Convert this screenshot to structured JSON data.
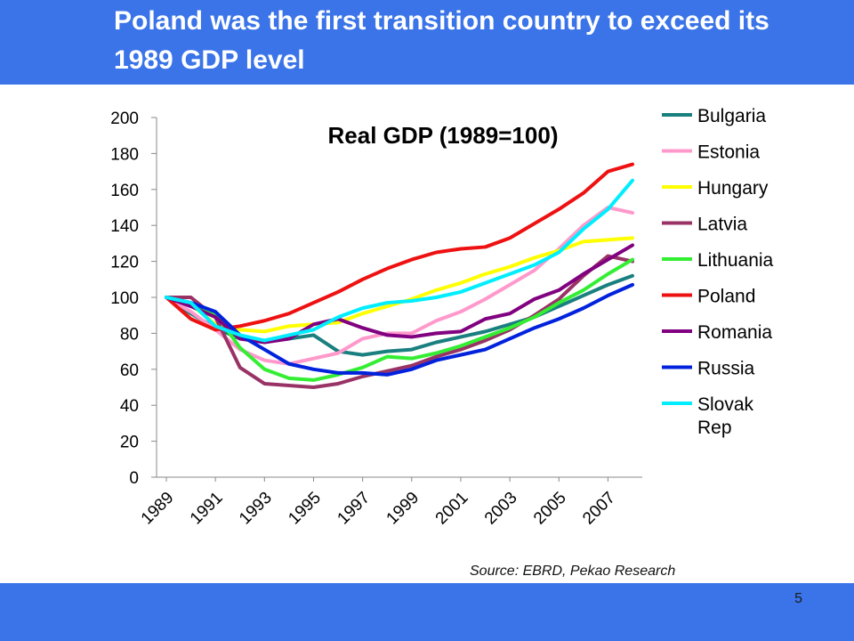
{
  "slide": {
    "title": "Poland was the first transition country to exceed its 1989 GDP level",
    "source": "Source: EBRD, Pekao Research",
    "page_number": "5",
    "colors": {
      "header_bar": "#3a74e8",
      "footer_bar": "#3a74e8"
    }
  },
  "chart_data": {
    "type": "line",
    "title": "Real GDP (1989=100)",
    "xlabel": "",
    "ylabel": "",
    "ylim": [
      0,
      200
    ],
    "yticks": [
      0,
      20,
      40,
      60,
      80,
      100,
      120,
      140,
      160,
      180,
      200
    ],
    "xlim": [
      1989,
      2008
    ],
    "xtick_labels": [
      "1989",
      "1991",
      "1993",
      "1995",
      "1997",
      "1999",
      "2001",
      "2003",
      "2005",
      "2007"
    ],
    "grid": false,
    "legend_position": "right",
    "x": [
      1989,
      1990,
      1991,
      1992,
      1993,
      1994,
      1995,
      1996,
      1997,
      1998,
      1999,
      2000,
      2001,
      2002,
      2003,
      2004,
      2005,
      2006,
      2007,
      2008
    ],
    "series": [
      {
        "name": "Bulgaria",
        "color": "#1a7f7f",
        "values": [
          100,
          91,
          83,
          77,
          76,
          77,
          79,
          70,
          68,
          70,
          71,
          75,
          78,
          81,
          85,
          89,
          95,
          101,
          107,
          112
        ]
      },
      {
        "name": "Estonia",
        "color": "#ff99cc",
        "values": [
          100,
          92,
          82,
          71,
          65,
          63,
          66,
          69,
          77,
          80,
          80,
          87,
          92,
          99,
          107,
          115,
          127,
          140,
          150,
          147
        ]
      },
      {
        "name": "Hungary",
        "color": "#ffff00",
        "values": [
          100,
          96,
          85,
          82,
          81,
          84,
          85,
          86,
          91,
          95,
          99,
          104,
          108,
          113,
          117,
          122,
          126,
          131,
          132,
          133
        ]
      },
      {
        "name": "Latvia",
        "color": "#993366",
        "values": [
          100,
          100,
          89,
          61,
          52,
          51,
          50,
          52,
          56,
          59,
          62,
          67,
          71,
          76,
          82,
          90,
          99,
          112,
          123,
          120
        ]
      },
      {
        "name": "Lithuania",
        "color": "#33ee33",
        "values": [
          100,
          96,
          91,
          72,
          60,
          55,
          54,
          57,
          61,
          67,
          66,
          69,
          73,
          78,
          83,
          89,
          97,
          104,
          113,
          121
        ]
      },
      {
        "name": "Poland",
        "color": "#ee1111",
        "values": [
          100,
          88,
          82,
          84,
          87,
          91,
          97,
          103,
          110,
          116,
          121,
          125,
          127,
          128,
          133,
          141,
          149,
          158,
          170,
          174
        ]
      },
      {
        "name": "Romania",
        "color": "#800080",
        "values": [
          100,
          95,
          89,
          77,
          75,
          77,
          85,
          88,
          83,
          79,
          78,
          80,
          81,
          88,
          91,
          99,
          104,
          113,
          121,
          129
        ]
      },
      {
        "name": "Russia",
        "color": "#0022dd",
        "values": [
          100,
          97,
          92,
          79,
          71,
          63,
          60,
          58,
          58,
          57,
          60,
          65,
          68,
          71,
          77,
          83,
          88,
          94,
          101,
          107
        ]
      },
      {
        "name": "Slovak Rep",
        "color": "#00eeff",
        "values": [
          100,
          97,
          84,
          79,
          76,
          79,
          82,
          89,
          94,
          97,
          98,
          100,
          103,
          108,
          113,
          118,
          125,
          138,
          149,
          165
        ]
      }
    ]
  }
}
